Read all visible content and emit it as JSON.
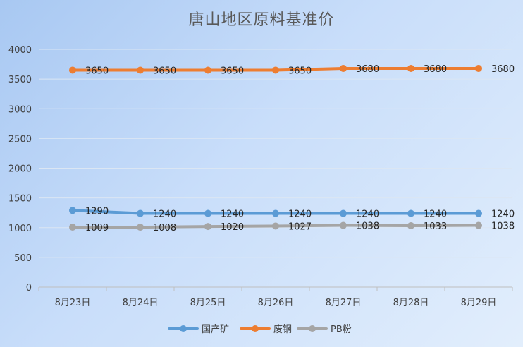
{
  "chart_data": {
    "type": "line",
    "title": "唐山地区原料基准价",
    "categories": [
      "8月23日",
      "8月24日",
      "8月25日",
      "8月26日",
      "8月27日",
      "8月28日",
      "8月29日"
    ],
    "ylim": [
      0,
      4000
    ],
    "yticks": [
      0,
      500,
      1000,
      1500,
      2000,
      2500,
      3000,
      3500,
      4000
    ],
    "grid": true,
    "legend": "bottom",
    "series": [
      {
        "name": "国产矿",
        "color": "#5b9bd5",
        "values": [
          1290,
          1240,
          1240,
          1240,
          1240,
          1240,
          1240
        ]
      },
      {
        "name": "废钢",
        "color": "#ed7d31",
        "values": [
          3650,
          3650,
          3650,
          3650,
          3680,
          3680,
          3680
        ]
      },
      {
        "name": "PB粉",
        "color": "#a5a5a5",
        "values": [
          1009,
          1008,
          1020,
          1027,
          1038,
          1033,
          1038
        ]
      }
    ]
  }
}
